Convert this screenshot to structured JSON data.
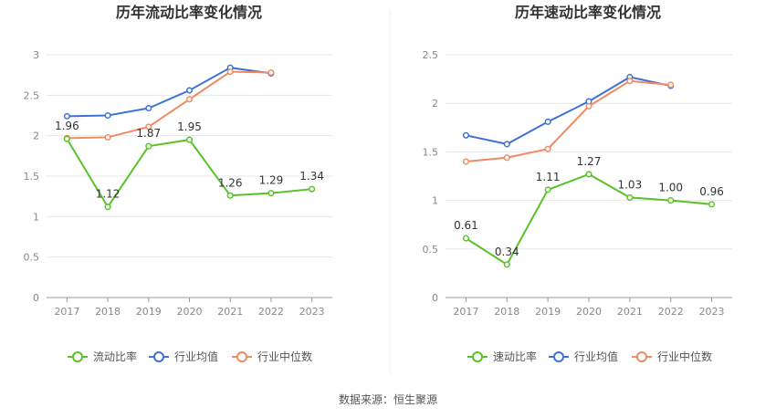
{
  "chart_data": [
    {
      "type": "line",
      "title": "历年流动比率变化情况",
      "categories": [
        "2017",
        "2018",
        "2019",
        "2020",
        "2021",
        "2022",
        "2023"
      ],
      "ylim": [
        0,
        3
      ],
      "yticks": [
        "0",
        "0.5",
        "1",
        "1.5",
        "2",
        "2.5",
        "3"
      ],
      "grid": true,
      "legend_position": "bottom",
      "series": [
        {
          "name": "流动比率",
          "color": "#5ac229",
          "values": [
            1.96,
            1.12,
            1.87,
            1.95,
            1.26,
            1.29,
            1.34
          ],
          "labels": [
            "1.96",
            "1.12",
            "1.87",
            "1.95",
            "1.26",
            "1.29",
            "1.34"
          ]
        },
        {
          "name": "行业均值",
          "color": "#3d72d6",
          "values": [
            2.24,
            2.25,
            2.34,
            2.56,
            2.84,
            2.77,
            null
          ]
        },
        {
          "name": "行业中位数",
          "color": "#f08a62",
          "values": [
            1.97,
            1.98,
            2.11,
            2.45,
            2.79,
            2.78,
            null
          ]
        }
      ]
    },
    {
      "type": "line",
      "title": "历年速动比率变化情况",
      "categories": [
        "2017",
        "2018",
        "2019",
        "2020",
        "2021",
        "2022",
        "2023"
      ],
      "ylim": [
        0,
        2.5
      ],
      "yticks": [
        "0",
        "0.5",
        "1",
        "1.5",
        "2",
        "2.5"
      ],
      "grid": true,
      "legend_position": "bottom",
      "series": [
        {
          "name": "速动比率",
          "color": "#5ac229",
          "values": [
            0.61,
            0.34,
            1.11,
            1.27,
            1.03,
            1.0,
            0.96
          ],
          "labels": [
            "0.61",
            "0.34",
            "1.11",
            "1.27",
            "1.03",
            "1.00",
            "0.96"
          ]
        },
        {
          "name": "行业均值",
          "color": "#3d72d6",
          "values": [
            1.67,
            1.58,
            1.81,
            2.02,
            2.27,
            2.18,
            null
          ]
        },
        {
          "name": "行业中位数",
          "color": "#f08a62",
          "values": [
            1.4,
            1.44,
            1.53,
            1.97,
            2.23,
            2.19,
            null
          ]
        }
      ]
    }
  ],
  "footer": {
    "source": "数据来源：恒生聚源"
  }
}
